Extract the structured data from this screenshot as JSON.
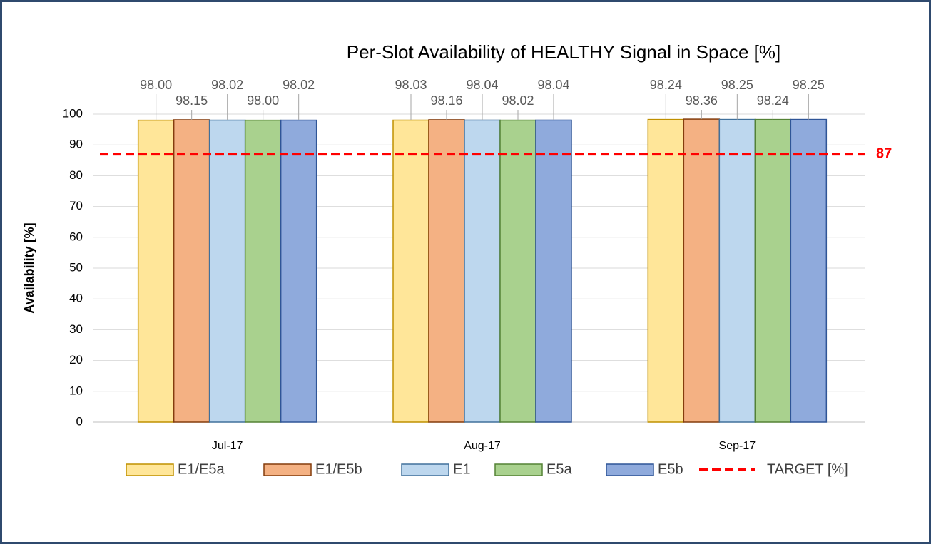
{
  "chart_data": {
    "type": "bar",
    "title": "Per-Slot Availability of HEALTHY Signal in Space [%]",
    "y_label": "Availability [%]",
    "categories": [
      "Jul-17",
      "Aug-17",
      "Sep-17"
    ],
    "series": [
      {
        "name": "E1/E5a",
        "color": "#ffe699",
        "edge": "#bf9000",
        "values": [
          98.0,
          98.03,
          98.24
        ],
        "value_labels": [
          "98.00",
          "98.03",
          "98.24"
        ]
      },
      {
        "name": "E1/E5b",
        "color": "#f4b183",
        "edge": "#843c0c",
        "values": [
          98.15,
          98.16,
          98.36
        ],
        "value_labels": [
          "98.15",
          "98.16",
          "98.36"
        ]
      },
      {
        "name": "E1",
        "color": "#bdd7ee",
        "edge": "#41719c",
        "values": [
          98.02,
          98.04,
          98.25
        ],
        "value_labels": [
          "98.02",
          "98.04",
          "98.25"
        ]
      },
      {
        "name": "E5a",
        "color": "#a9d18e",
        "edge": "#548235",
        "values": [
          98.0,
          98.02,
          98.24
        ],
        "value_labels": [
          "98.00",
          "98.02",
          "98.24"
        ]
      },
      {
        "name": "E5b",
        "color": "#8faadc",
        "edge": "#2f5597",
        "values": [
          98.02,
          98.04,
          98.25
        ],
        "value_labels": [
          "98.02",
          "98.04",
          "98.25"
        ]
      }
    ],
    "target_line": {
      "name": "TARGET [%]",
      "value": 87,
      "color": "#ff0000"
    },
    "ylim": [
      0,
      100
    ],
    "yticks": [
      0,
      10,
      20,
      30,
      40,
      50,
      60,
      70,
      80,
      90,
      100
    ],
    "grid": true,
    "legend": "bottom"
  }
}
